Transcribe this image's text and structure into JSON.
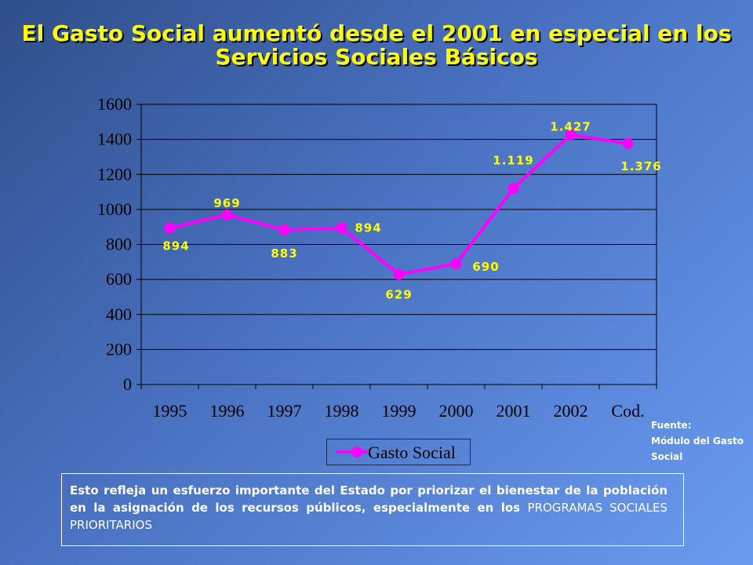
{
  "title": {
    "line1": "El Gasto Social aumentó desde el 2001 en especial en los",
    "line2": "Servicios Sociales Básicos"
  },
  "chart_data": {
    "type": "line",
    "categories": [
      "1995",
      "1996",
      "1997",
      "1998",
      "1999",
      "2000",
      "2001",
      "2002",
      "Cod."
    ],
    "series": [
      {
        "name": "Gasto Social",
        "values": [
          894,
          969,
          883,
          894,
          629,
          690,
          1119,
          1427,
          1376
        ],
        "labels": [
          "894",
          "969",
          "883",
          "894",
          "629",
          "690",
          "1.119",
          "1.427",
          "1.376"
        ],
        "color": "#ff00ff"
      }
    ],
    "yticks": [
      "0",
      "200",
      "400",
      "600",
      "800",
      "1000",
      "1200",
      "1400",
      "1600"
    ],
    "ylim": [
      0,
      1600
    ],
    "grid": true,
    "legend_position": "bottom",
    "label_color": "#ffff00"
  },
  "legend": {
    "label": "Gasto Social"
  },
  "source": {
    "line1": "Fuente:",
    "line2": "Módulo del Gasto",
    "line3": "Social"
  },
  "note": {
    "text": "Esto refleja un esfuerzo importante del Estado por priorizar el bienestar de la población en la asignación de los recursos públicos, especialmente en los ",
    "caps": "PROGRAMAS SOCIALES PRIORITARIOS"
  }
}
